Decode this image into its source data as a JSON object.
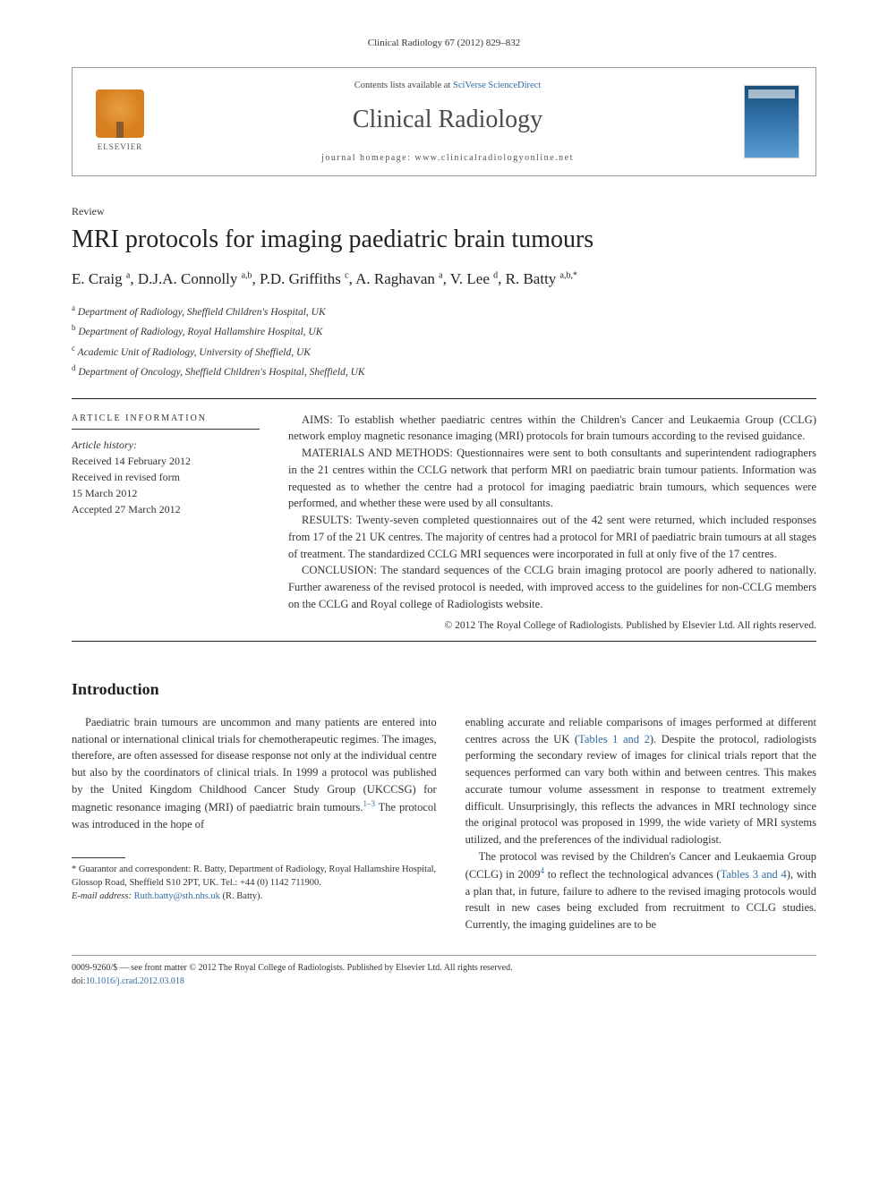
{
  "citation": "Clinical Radiology 67 (2012) 829–832",
  "header": {
    "contents_prefix": "Contents lists available at ",
    "contents_link": "SciVerse ScienceDirect",
    "journal": "Clinical Radiology",
    "homepage_prefix": "journal homepage: ",
    "homepage": "www.clinicalradiologyonline.net",
    "elsevier_label": "ELSEVIER"
  },
  "article_type": "Review",
  "title": "MRI protocols for imaging paediatric brain tumours",
  "authors_html": "E. Craig <sup>a</sup>, D.J.A. Connolly <sup>a,b</sup>, P.D. Griffiths <sup>c</sup>, A. Raghavan <sup>a</sup>, V. Lee <sup>d</sup>, R. Batty <sup>a,b,*</sup>",
  "affiliations": [
    {
      "sup": "a",
      "text": "Department of Radiology, Sheffield Children's Hospital, UK"
    },
    {
      "sup": "b",
      "text": "Department of Radiology, Royal Hallamshire Hospital, UK"
    },
    {
      "sup": "c",
      "text": "Academic Unit of Radiology, University of Sheffield, UK"
    },
    {
      "sup": "d",
      "text": "Department of Oncology, Sheffield Children's Hospital, Sheffield, UK"
    }
  ],
  "article_info": {
    "heading": "ARTICLE INFORMATION",
    "history_label": "Article history:",
    "received": "Received 14 February 2012",
    "revised1": "Received in revised form",
    "revised2": "15 March 2012",
    "accepted": "Accepted 27 March 2012"
  },
  "abstract": {
    "aims": "AIMS: To establish whether paediatric centres within the Children's Cancer and Leukaemia Group (CCLG) network employ magnetic resonance imaging (MRI) protocols for brain tumours according to the revised guidance.",
    "methods": "MATERIALS AND METHODS: Questionnaires were sent to both consultants and superintendent radiographers in the 21 centres within the CCLG network that perform MRI on paediatric brain tumour patients. Information was requested as to whether the centre had a protocol for imaging paediatric brain tumours, which sequences were performed, and whether these were used by all consultants.",
    "results": "RESULTS: Twenty-seven completed questionnaires out of the 42 sent were returned, which included responses from 17 of the 21 UK centres. The majority of centres had a protocol for MRI of paediatric brain tumours at all stages of treatment. The standardized CCLG MRI sequences were incorporated in full at only five of the 17 centres.",
    "conclusion": "CONCLUSION: The standard sequences of the CCLG brain imaging protocol are poorly adhered to nationally. Further awareness of the revised protocol is needed, with improved access to the guidelines for non-CCLG members on the CCLG and Royal college of Radiologists website.",
    "copyright": "© 2012 The Royal College of Radiologists. Published by Elsevier Ltd. All rights reserved."
  },
  "intro_heading": "Introduction",
  "intro": {
    "p1_a": "Paediatric brain tumours are uncommon and many patients are entered into national or international clinical trials for chemotherapeutic regimes. The images, therefore, are often assessed for disease response not only at the individual centre but also by the coordinators of clinical trials. In 1999 a protocol was published by the United Kingdom Childhood Cancer Study Group (UKCCSG) for magnetic resonance imaging (MRI) of paediatric brain tumours.",
    "p1_sup": "1–3",
    "p1_b": " The protocol was introduced in the hope of ",
    "p1_c": "enabling accurate and reliable comparisons of images performed at different centres across the UK (",
    "p1_link1": "Tables 1 and 2",
    "p1_d": "). Despite the protocol, radiologists performing the secondary review of images for clinical trials report that the sequences performed can vary both within and between centres. This makes accurate tumour volume assessment in response to treatment extremely difficult. Unsurprisingly, this reflects the advances in MRI technology since the original protocol was proposed in 1999, the wide variety of MRI systems utilized, and the preferences of the individual radiologist.",
    "p2_a": "The protocol was revised by the Children's Cancer and Leukaemia Group (CCLG) in 2009",
    "p2_sup": "4",
    "p2_b": " to reflect the technological advances (",
    "p2_link": "Tables 3 and 4",
    "p2_c": "), with a plan that, in future, failure to adhere to the revised imaging protocols would result in new cases being excluded from recruitment to CCLG studies. Currently, the imaging guidelines are to be"
  },
  "footnotes": {
    "corr": "* Guarantor and correspondent: R. Batty, Department of Radiology, Royal Hallamshire Hospital, Glossop Road, Sheffield S10 2PT, UK. Tel.: +44 (0) 1142 711900.",
    "email_label": "E-mail address: ",
    "email": "Ruth.batty@sth.nhs.uk",
    "email_who": " (R. Batty)."
  },
  "bottom": {
    "front": "0009-9260/$ — see front matter © 2012 The Royal College of Radiologists. Published by Elsevier Ltd. All rights reserved.",
    "doi_label": "doi:",
    "doi": "10.1016/j.crad.2012.03.018"
  },
  "colors": {
    "link": "#2e6da4",
    "text": "#333333",
    "title": "#222222",
    "border": "#999999"
  }
}
